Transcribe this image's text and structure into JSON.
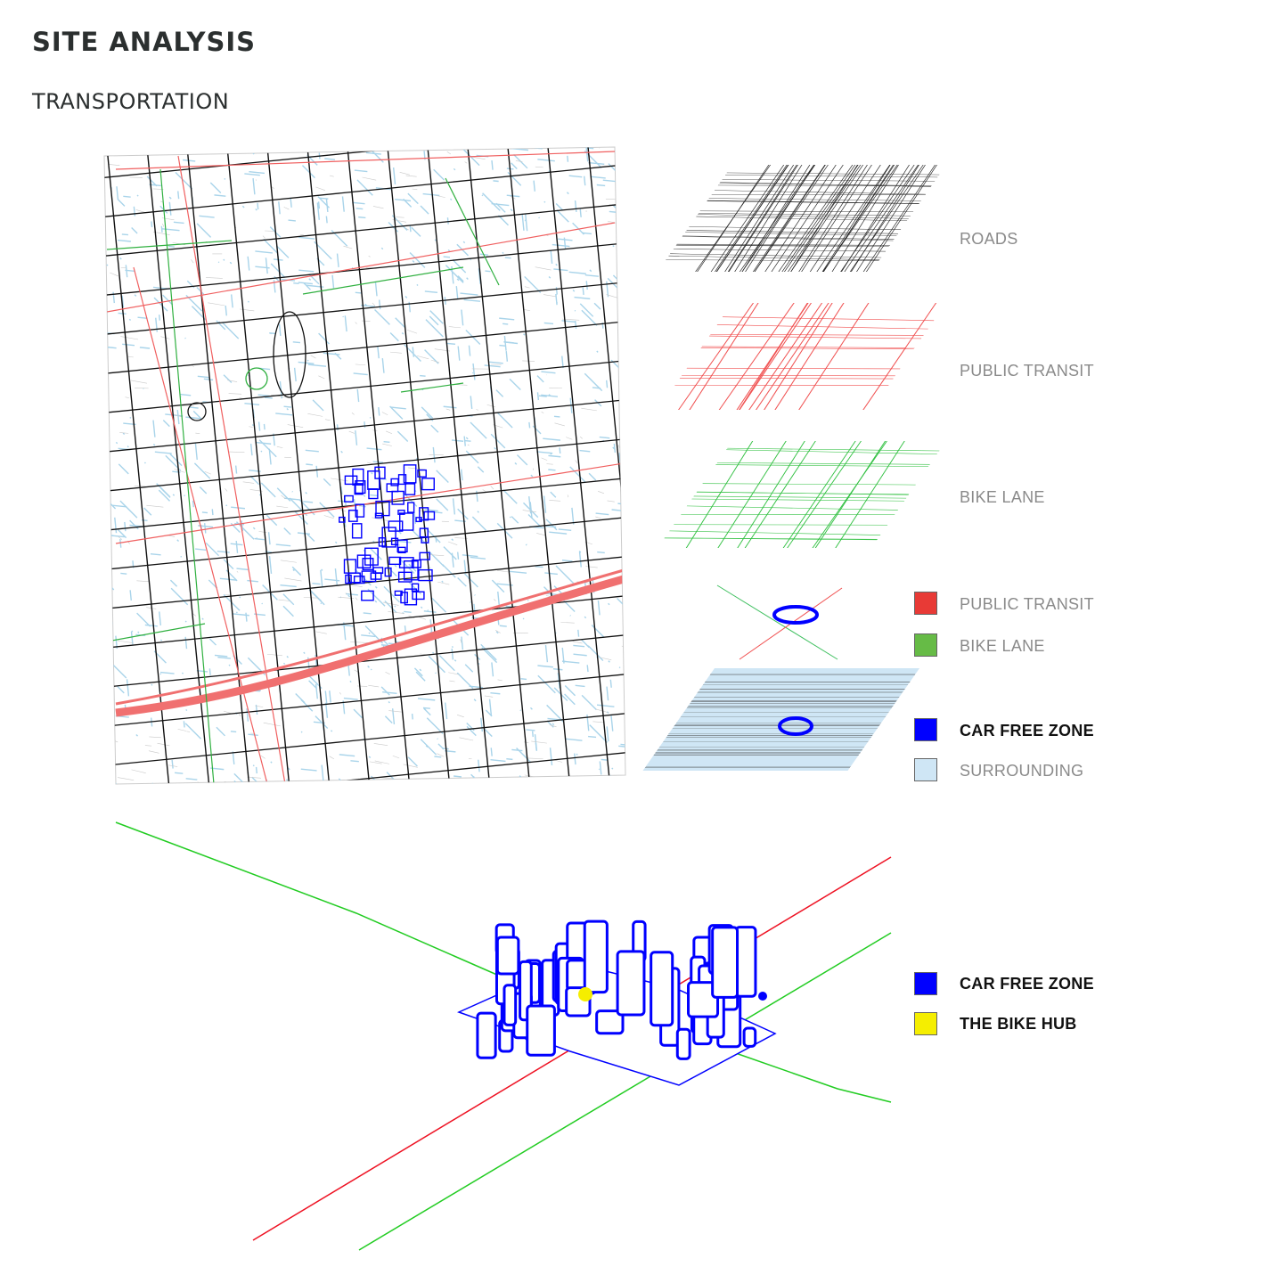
{
  "header": {
    "title": "SITE ANALYSIS",
    "subtitle": "TRANSPORTATION"
  },
  "layers": [
    {
      "label": "ROADS",
      "icon": "roads-layer-icon"
    },
    {
      "label": "PUBLIC TRANSIT",
      "icon": "transit-layer-icon"
    },
    {
      "label": "BIKE LANE",
      "icon": "bike-lane-layer-icon"
    }
  ],
  "legend_top": [
    {
      "label": "PUBLIC TRANSIT",
      "color": "#e83a36"
    },
    {
      "label": "BIKE LANE",
      "color": "#66bb46"
    },
    {
      "label": "CAR FREE ZONE",
      "color": "#0000ff"
    },
    {
      "label": "SURROUNDING",
      "color": "#cfe6f5"
    }
  ],
  "legend_bottom": [
    {
      "label": "CAR FREE ZONE",
      "color": "#0000ff"
    },
    {
      "label": "THE BIKE HUB",
      "color": "#f5ee00"
    }
  ],
  "colors": {
    "road": "#111111",
    "transit": "#f06060",
    "bike": "#2fc040",
    "surrounding": "#a9d4ea",
    "car_free": "#0000ff",
    "bike_hub": "#f5ee00"
  }
}
